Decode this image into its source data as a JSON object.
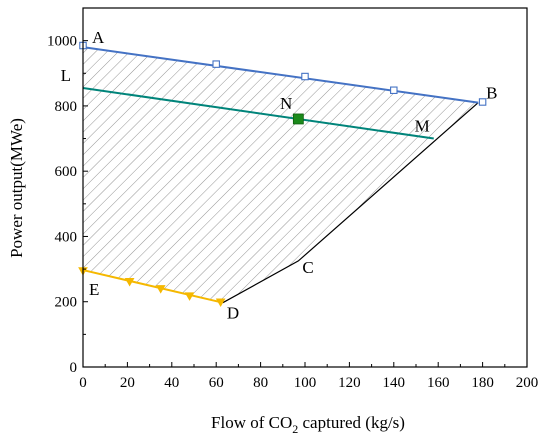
{
  "chart_data": {
    "type": "area",
    "xlabel_prefix": "Flow of CO",
    "xlabel_sub": "2",
    "xlabel_suffix": " captured (kg/s)",
    "ylabel": "Power output(MWe)",
    "xlim": [
      0,
      200
    ],
    "ylim": [
      0,
      1100
    ],
    "xticks": [
      "0",
      "20",
      "40",
      "60",
      "80",
      "100",
      "120",
      "140",
      "160",
      "180",
      "200"
    ],
    "yticks": [
      "0",
      "200",
      "400",
      "600",
      "800",
      "1000"
    ],
    "grid": false,
    "hatched_region": [
      [
        0,
        980
      ],
      [
        178,
        810
      ],
      [
        97,
        325
      ],
      [
        63,
        197
      ],
      [
        0,
        297
      ]
    ],
    "boundary_line": [
      [
        63,
        197
      ],
      [
        97,
        325
      ],
      [
        178,
        810
      ]
    ],
    "series": [
      {
        "color": "#4472C4",
        "marker": "open-square",
        "x": [
          0,
          178
        ],
        "y": [
          980,
          810
        ],
        "marker_x": [
          0,
          60,
          100,
          140,
          180
        ],
        "marker_y": [
          985,
          928,
          890,
          848,
          812
        ]
      },
      {
        "color": "#00847A",
        "marker": "none",
        "x": [
          0,
          158
        ],
        "y": [
          855,
          700
        ]
      },
      {
        "color": "#F5B800",
        "marker": "triangle-down",
        "x": [
          0,
          63
        ],
        "y": [
          297,
          197
        ],
        "marker_x": [
          0,
          21,
          35,
          48,
          62
        ],
        "marker_y": [
          295,
          262,
          240,
          218,
          199
        ]
      }
    ],
    "highlight_point": {
      "label": "N",
      "x": 97,
      "y": 760,
      "color": "#1B8A1B"
    },
    "point_labels": [
      {
        "text": "A",
        "x": 0,
        "y": 980
      },
      {
        "text": "B",
        "x": 178,
        "y": 810
      },
      {
        "text": "L",
        "x": 0,
        "y": 855
      },
      {
        "text": "M",
        "x": 158,
        "y": 700
      },
      {
        "text": "C",
        "x": 97,
        "y": 325
      },
      {
        "text": "D",
        "x": 63,
        "y": 197
      },
      {
        "text": "E",
        "x": 0,
        "y": 297
      }
    ]
  }
}
